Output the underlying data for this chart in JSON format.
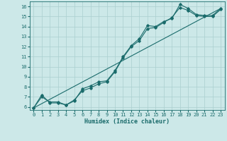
{
  "xlabel": "Humidex (Indice chaleur)",
  "xlim": [
    -0.5,
    23.5
  ],
  "ylim": [
    5.7,
    16.5
  ],
  "xticks": [
    0,
    1,
    2,
    3,
    4,
    5,
    6,
    7,
    8,
    9,
    10,
    11,
    12,
    13,
    14,
    15,
    16,
    17,
    18,
    19,
    20,
    21,
    22,
    23
  ],
  "yticks": [
    6,
    7,
    8,
    9,
    10,
    11,
    12,
    13,
    14,
    15,
    16
  ],
  "bg_color": "#cce8e8",
  "line_color": "#1a6b6b",
  "grid_color": "#aacfcf",
  "series1": [
    [
      0,
      5.9
    ],
    [
      1,
      7.2
    ],
    [
      2,
      6.4
    ],
    [
      3,
      6.4
    ],
    [
      4,
      6.2
    ],
    [
      5,
      6.6
    ],
    [
      6,
      7.8
    ],
    [
      7,
      8.1
    ],
    [
      8,
      8.5
    ],
    [
      9,
      8.6
    ],
    [
      10,
      9.6
    ],
    [
      11,
      11.0
    ],
    [
      12,
      12.1
    ],
    [
      13,
      12.8
    ],
    [
      14,
      14.1
    ],
    [
      15,
      14.0
    ],
    [
      16,
      14.5
    ],
    [
      17,
      14.8
    ],
    [
      18,
      16.2
    ],
    [
      19,
      15.8
    ],
    [
      20,
      15.2
    ],
    [
      21,
      15.1
    ],
    [
      22,
      15.1
    ],
    [
      23,
      15.8
    ]
  ],
  "series2": [
    [
      0,
      5.9
    ],
    [
      1,
      7.0
    ],
    [
      2,
      6.5
    ],
    [
      3,
      6.5
    ],
    [
      4,
      6.2
    ],
    [
      5,
      6.7
    ],
    [
      6,
      7.6
    ],
    [
      7,
      7.9
    ],
    [
      8,
      8.3
    ],
    [
      9,
      8.5
    ],
    [
      10,
      9.5
    ],
    [
      11,
      10.9
    ],
    [
      12,
      12.0
    ],
    [
      13,
      12.6
    ],
    [
      14,
      13.8
    ],
    [
      15,
      13.9
    ],
    [
      16,
      14.4
    ],
    [
      17,
      14.9
    ],
    [
      18,
      15.9
    ],
    [
      19,
      15.6
    ],
    [
      20,
      15.1
    ],
    [
      21,
      15.0
    ],
    [
      22,
      15.0
    ],
    [
      23,
      15.7
    ]
  ],
  "linear_series": [
    [
      0,
      5.9
    ],
    [
      23,
      15.8
    ]
  ]
}
